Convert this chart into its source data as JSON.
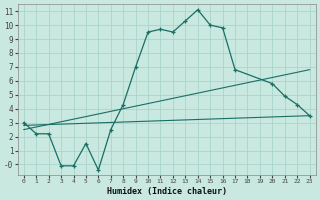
{
  "xlabel": "Humidex (Indice chaleur)",
  "bg_color": "#c8e8e0",
  "grid_color": "#a8d4cc",
  "line_color": "#1a6e64",
  "xlim": [
    -0.5,
    23.5
  ],
  "ylim": [
    -0.75,
    11.5
  ],
  "xticks": [
    0,
    1,
    2,
    3,
    4,
    5,
    6,
    7,
    8,
    9,
    10,
    11,
    12,
    13,
    14,
    15,
    16,
    17,
    18,
    19,
    20,
    21,
    22,
    23
  ],
  "yticks": [
    0,
    1,
    2,
    3,
    4,
    5,
    6,
    7,
    8,
    9,
    10,
    11
  ],
  "ytick_labels": [
    "-0",
    "1",
    "2",
    "3",
    "4",
    "5",
    "6",
    "7",
    "8",
    "9",
    "10",
    "11"
  ],
  "main_curve_x": [
    0,
    1,
    2,
    3,
    4,
    5,
    6,
    7,
    8,
    9,
    10,
    11,
    12,
    13,
    14,
    15,
    16,
    17,
    20,
    21,
    22,
    23
  ],
  "main_curve_y": [
    3.0,
    2.2,
    2.2,
    -0.1,
    -0.1,
    1.5,
    -0.4,
    2.5,
    4.3,
    7.0,
    9.5,
    9.7,
    9.5,
    10.3,
    11.1,
    10.0,
    9.8,
    6.8,
    5.8,
    4.9,
    4.3,
    3.5
  ],
  "line1_x": [
    0,
    23
  ],
  "line1_y": [
    2.8,
    3.5
  ],
  "line2_x": [
    0,
    23
  ],
  "line2_y": [
    2.5,
    6.8
  ],
  "figsize": [
    3.2,
    2.0
  ],
  "dpi": 100
}
